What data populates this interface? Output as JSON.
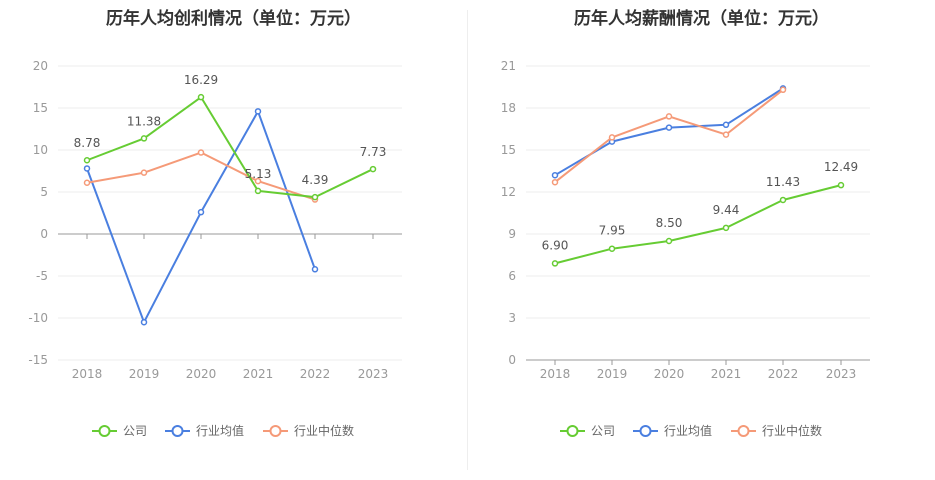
{
  "chart_data": [
    {
      "type": "line",
      "title": "历年人均创利情况（单位：万元）",
      "categories": [
        "2018",
        "2019",
        "2020",
        "2021",
        "2022",
        "2023"
      ],
      "y_ticks": [
        "20",
        "15",
        "10",
        "5",
        "0",
        "-5",
        "-10",
        "-15"
      ],
      "ylim": [
        -15,
        20
      ],
      "grid": true,
      "legend_position": "bottom-center",
      "series": [
        {
          "name": "公司",
          "color": "#66cc33",
          "values": [
            8.78,
            11.38,
            16.29,
            5.13,
            4.39,
            7.73
          ],
          "labels": [
            "8.78",
            "11.38",
            "16.29",
            "5.13",
            "4.39",
            "7.73"
          ]
        },
        {
          "name": "行业均值",
          "color": "#4a7fe0",
          "values": [
            7.8,
            -10.5,
            2.6,
            14.6,
            -4.2,
            null
          ]
        },
        {
          "name": "行业中位数",
          "color": "#f59a78",
          "values": [
            6.1,
            7.3,
            9.7,
            6.3,
            4.1,
            null
          ]
        }
      ]
    },
    {
      "type": "line",
      "title": "历年人均薪酬情况（单位：万元）",
      "categories": [
        "2018",
        "2019",
        "2020",
        "2021",
        "2022",
        "2023"
      ],
      "y_ticks": [
        "21",
        "18",
        "15",
        "12",
        "9",
        "6",
        "3",
        "0"
      ],
      "ylim": [
        0,
        21
      ],
      "grid": true,
      "legend_position": "bottom-center",
      "series": [
        {
          "name": "公司",
          "color": "#66cc33",
          "values": [
            6.9,
            7.95,
            8.5,
            9.44,
            11.43,
            12.49
          ],
          "labels": [
            "6.90",
            "7.95",
            "8.50",
            "9.44",
            "11.43",
            "12.49"
          ]
        },
        {
          "name": "行业均值",
          "color": "#4a7fe0",
          "values": [
            13.2,
            15.6,
            16.6,
            16.8,
            19.4,
            null
          ]
        },
        {
          "name": "行业中位数",
          "color": "#f59a78",
          "values": [
            12.7,
            15.9,
            17.4,
            16.1,
            19.3,
            null
          ]
        }
      ]
    }
  ]
}
